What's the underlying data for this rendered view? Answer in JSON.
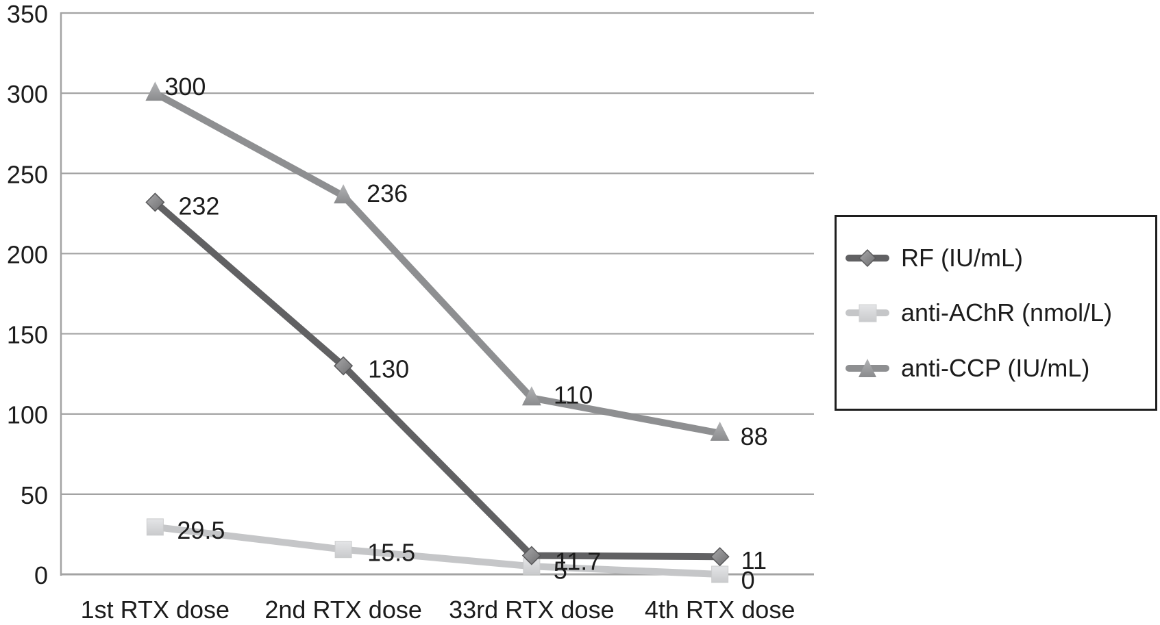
{
  "chart_data": {
    "type": "line",
    "title": "",
    "xlabel": "",
    "ylabel": "",
    "categories": [
      "1st RTX dose",
      "2nd RTX dose",
      "33rd RTX dose",
      "4th RTX dose"
    ],
    "ylim": [
      0,
      350
    ],
    "yticks": [
      0,
      50,
      100,
      150,
      200,
      250,
      300,
      350
    ],
    "grid": true,
    "legend_position": "right",
    "series": [
      {
        "name": "RF (IU/mL)",
        "marker": "diamond",
        "color": "#616163",
        "marker_color": "#8b8b8d",
        "values": [
          232,
          130,
          11.7,
          11
        ],
        "labels": [
          "232",
          "130",
          "11.7",
          "11"
        ]
      },
      {
        "name": "anti-AChR (nmol/L)",
        "marker": "square",
        "color": "#c5c6c8",
        "marker_color": "#d7d8da",
        "values": [
          29.5,
          15.5,
          5,
          0
        ],
        "labels": [
          "29.5",
          "15.5",
          "5",
          "0"
        ]
      },
      {
        "name": "anti-CCP (IU/mL)",
        "marker": "triangle",
        "color": "#8e8f91",
        "marker_color": "#9d9ea0",
        "values": [
          300,
          236,
          110,
          88
        ],
        "labels": [
          "300",
          "236",
          "110",
          "88"
        ]
      }
    ]
  },
  "legend": {
    "items": [
      {
        "label": "RF (IU/mL)"
      },
      {
        "label": "anti-AChR (nmol/L)"
      },
      {
        "label": "anti-CCP (IU/mL)"
      }
    ]
  },
  "colors": {
    "gridline": "#a3a3a3",
    "axis": "#a3a3a3",
    "text": "#1c1c1c",
    "legend_border": "#1e1e1e"
  }
}
